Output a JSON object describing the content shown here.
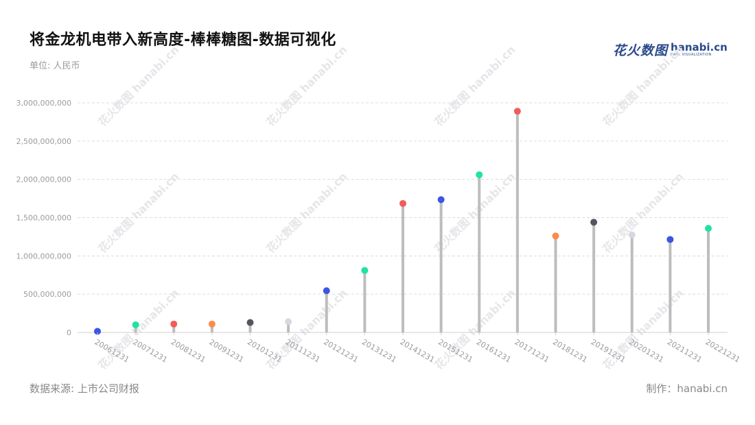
{
  "header": {
    "title": "将金龙机电带入新高度-棒棒糖图-数据可视化",
    "unit": "单位: 人民币"
  },
  "footer": {
    "source": "数据来源: 上市公司财报",
    "maker": "制作：hanabi.cn"
  },
  "logo": {
    "cn_text": "花火数图",
    "en_text": "hanabi.cn",
    "sub_text": "DATA VISUALIZATION"
  },
  "colors": {
    "grid": "#dcdcdc",
    "stem": "#bdbdbd",
    "axis": "#cfcfcf",
    "dot_palette": [
      "#3b55e6",
      "#1ee3a1",
      "#f35b5b",
      "#fb8c4a",
      "#55555f",
      "#d5d8e3"
    ]
  },
  "chart_data": {
    "type": "lollipop",
    "title": "将金龙机电带入新高度-棒棒糖图-数据可视化",
    "ylabel": "单位: 人民币",
    "ylim": [
      0,
      3000000000
    ],
    "yticks": [
      0,
      500000000,
      1000000000,
      1500000000,
      2000000000,
      2500000000,
      3000000000
    ],
    "ytick_labels": [
      "0",
      "500,000,000",
      "1,000,000,000",
      "1,500,000,000",
      "2,000,000,000",
      "2,500,000,000",
      "3,000,000,000"
    ],
    "grid": true,
    "categories": [
      "20061231",
      "20071231",
      "20081231",
      "20091231",
      "20101231",
      "20111231",
      "20121231",
      "20131231",
      "20141231",
      "20151231",
      "20161231",
      "20171231",
      "20181231",
      "20191231",
      "20201231",
      "20211231",
      "20221231"
    ],
    "values": [
      15000000,
      100000000,
      110000000,
      110000000,
      130000000,
      140000000,
      545000000,
      810000000,
      1685000000,
      1735000000,
      2060000000,
      2890000000,
      1260000000,
      1440000000,
      1275000000,
      1215000000,
      1360000000
    ],
    "dot_colors": [
      "#3b55e6",
      "#1ee3a1",
      "#f35b5b",
      "#fb8c4a",
      "#55555f",
      "#d5d8e3",
      "#3b55e6",
      "#1ee3a1",
      "#f35b5b",
      "#3b55e6",
      "#1ee3a1",
      "#f35b5b",
      "#fb8c4a",
      "#55555f",
      "#d5d8e3",
      "#3b55e6",
      "#1ee3a1"
    ]
  }
}
